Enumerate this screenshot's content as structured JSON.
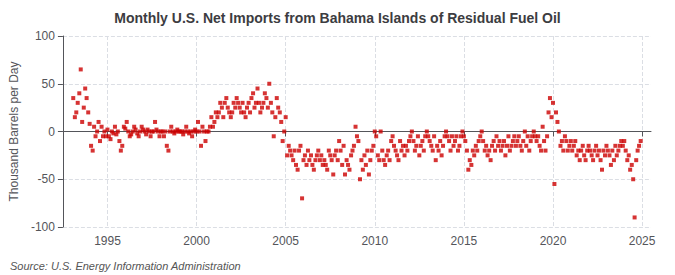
{
  "chart_data": {
    "type": "scatter",
    "title": "Monthly U.S. Net Imports from Bahama Islands of Residual Fuel Oil",
    "ylabel": "Thousand Barrels per Day",
    "annotations": [
      "Source: U.S. Energy Information Administration"
    ],
    "color": "#cc0000",
    "marker": "square",
    "grid": true,
    "xlim": [
      1992.5,
      2025.5
    ],
    "xticks": [
      1995,
      2000,
      2005,
      2010,
      2015,
      2020,
      2025
    ],
    "ylim": [
      -100,
      100
    ],
    "yticks": [
      -100,
      -50,
      0,
      50,
      100
    ],
    "x": [
      1993.08,
      1993.17,
      1993.25,
      1993.33,
      1993.42,
      1993.5,
      1993.58,
      1993.67,
      1993.75,
      1993.83,
      1993.92,
      1994,
      1994.08,
      1994.17,
      1994.25,
      1994.33,
      1994.42,
      1994.5,
      1994.58,
      1994.67,
      1994.75,
      1994.83,
      1994.92,
      1995,
      1995.08,
      1995.17,
      1995.25,
      1995.33,
      1995.42,
      1995.5,
      1995.58,
      1995.67,
      1995.75,
      1995.83,
      1995.92,
      1996,
      1996.08,
      1996.17,
      1996.25,
      1996.33,
      1996.42,
      1996.5,
      1996.58,
      1996.67,
      1996.75,
      1996.83,
      1996.92,
      1997,
      1997.08,
      1997.17,
      1997.25,
      1997.33,
      1997.42,
      1997.5,
      1997.58,
      1997.67,
      1997.75,
      1997.83,
      1997.92,
      1998,
      1998.08,
      1998.17,
      1998.25,
      1998.33,
      1998.42,
      1998.5,
      1998.58,
      1998.67,
      1998.75,
      1998.83,
      1998.92,
      1999,
      1999.08,
      1999.17,
      1999.25,
      1999.33,
      1999.42,
      1999.5,
      1999.58,
      1999.67,
      1999.75,
      1999.83,
      1999.92,
      2000,
      2000.08,
      2000.17,
      2000.25,
      2000.33,
      2000.42,
      2000.5,
      2000.58,
      2000.67,
      2000.75,
      2000.83,
      2000.92,
      2001,
      2001.08,
      2001.17,
      2001.25,
      2001.33,
      2001.42,
      2001.5,
      2001.58,
      2001.67,
      2001.75,
      2001.83,
      2001.92,
      2002,
      2002.08,
      2002.17,
      2002.25,
      2002.33,
      2002.42,
      2002.5,
      2002.58,
      2002.67,
      2002.75,
      2002.83,
      2002.92,
      2003,
      2003.08,
      2003.17,
      2003.25,
      2003.33,
      2003.42,
      2003.5,
      2003.58,
      2003.67,
      2003.75,
      2003.83,
      2003.92,
      2004,
      2004.08,
      2004.17,
      2004.25,
      2004.33,
      2004.42,
      2004.5,
      2004.58,
      2004.67,
      2004.75,
      2004.83,
      2004.92,
      2005,
      2005.08,
      2005.17,
      2005.25,
      2005.33,
      2005.42,
      2005.5,
      2005.58,
      2005.67,
      2005.75,
      2005.83,
      2005.92,
      2006,
      2006.08,
      2006.17,
      2006.25,
      2006.33,
      2006.42,
      2006.5,
      2006.58,
      2006.67,
      2006.75,
      2006.83,
      2006.92,
      2007,
      2007.08,
      2007.17,
      2007.25,
      2007.33,
      2007.42,
      2007.5,
      2007.58,
      2007.67,
      2007.75,
      2007.83,
      2007.92,
      2008,
      2008.08,
      2008.17,
      2008.25,
      2008.33,
      2008.42,
      2008.5,
      2008.58,
      2008.67,
      2008.75,
      2008.83,
      2008.92,
      2009,
      2009.08,
      2009.17,
      2009.25,
      2009.33,
      2009.42,
      2009.5,
      2009.58,
      2009.67,
      2009.75,
      2009.83,
      2009.92,
      2010,
      2010.08,
      2010.17,
      2010.25,
      2010.33,
      2010.42,
      2010.5,
      2010.58,
      2010.67,
      2010.75,
      2010.83,
      2010.92,
      2011,
      2011.08,
      2011.17,
      2011.25,
      2011.33,
      2011.42,
      2011.5,
      2011.58,
      2011.67,
      2011.75,
      2011.83,
      2011.92,
      2012,
      2012.08,
      2012.17,
      2012.25,
      2012.33,
      2012.42,
      2012.5,
      2012.58,
      2012.67,
      2012.75,
      2012.83,
      2012.92,
      2013,
      2013.08,
      2013.17,
      2013.25,
      2013.33,
      2013.42,
      2013.5,
      2013.58,
      2013.67,
      2013.75,
      2013.83,
      2013.92,
      2014,
      2014.08,
      2014.17,
      2014.25,
      2014.33,
      2014.42,
      2014.5,
      2014.58,
      2014.67,
      2014.75,
      2014.83,
      2014.92,
      2015,
      2015.08,
      2015.17,
      2015.25,
      2015.33,
      2015.42,
      2015.5,
      2015.58,
      2015.67,
      2015.75,
      2015.83,
      2015.92,
      2016,
      2016.08,
      2016.17,
      2016.25,
      2016.33,
      2016.42,
      2016.5,
      2016.58,
      2016.67,
      2016.75,
      2016.83,
      2016.92,
      2017,
      2017.08,
      2017.17,
      2017.25,
      2017.33,
      2017.42,
      2017.5,
      2017.58,
      2017.67,
      2017.75,
      2017.83,
      2017.92,
      2018,
      2018.08,
      2018.17,
      2018.25,
      2018.33,
      2018.42,
      2018.5,
      2018.58,
      2018.67,
      2018.75,
      2018.83,
      2018.92,
      2019,
      2019.08,
      2019.17,
      2019.25,
      2019.33,
      2019.42,
      2019.5,
      2019.58,
      2019.67,
      2019.75,
      2019.83,
      2019.92,
      2020,
      2020.08,
      2020.17,
      2020.25,
      2020.33,
      2020.42,
      2020.5,
      2020.58,
      2020.67,
      2020.75,
      2020.83,
      2020.92,
      2021,
      2021.08,
      2021.17,
      2021.25,
      2021.33,
      2021.42,
      2021.5,
      2021.58,
      2021.67,
      2021.75,
      2021.83,
      2021.92,
      2022,
      2022.08,
      2022.17,
      2022.25,
      2022.33,
      2022.42,
      2022.5,
      2022.58,
      2022.67,
      2022.75,
      2022.83,
      2022.92,
      2023,
      2023.08,
      2023.17,
      2023.25,
      2023.33,
      2023.42,
      2023.5,
      2023.58,
      2023.67,
      2023.75,
      2023.83,
      2023.92,
      2024,
      2024.08,
      2024.17,
      2024.25,
      2024.33,
      2024.42,
      2024.5,
      2024.58,
      2024.67,
      2024.75,
      2024.83,
      2024.92
    ],
    "values": [
      35,
      15,
      20,
      30,
      40,
      65,
      10,
      25,
      45,
      35,
      20,
      8,
      -15,
      -20,
      5,
      -5,
      0,
      10,
      -10,
      5,
      -5,
      0,
      -5,
      2,
      -5,
      -8,
      0,
      -2,
      5,
      -3,
      0,
      -10,
      -20,
      -15,
      5,
      3,
      10,
      0,
      -5,
      -3,
      0,
      5,
      2,
      -2,
      -5,
      0,
      5,
      2,
      0,
      -3,
      2,
      0,
      -5,
      0,
      0,
      10,
      2,
      0,
      -5,
      0,
      0,
      -5,
      0,
      -15,
      -20,
      0,
      5,
      0,
      -2,
      0,
      2,
      0,
      0,
      0,
      -3,
      0,
      5,
      0,
      -2,
      0,
      -5,
      0,
      2,
      0,
      10,
      0,
      -15,
      5,
      0,
      -10,
      0,
      0,
      5,
      15,
      5,
      10,
      20,
      15,
      20,
      30,
      25,
      15,
      30,
      35,
      25,
      20,
      15,
      20,
      30,
      25,
      35,
      30,
      25,
      20,
      30,
      20,
      15,
      25,
      30,
      20,
      35,
      40,
      25,
      30,
      45,
      30,
      20,
      25,
      30,
      40,
      35,
      25,
      50,
      30,
      20,
      -5,
      15,
      35,
      25,
      20,
      10,
      -10,
      0,
      15,
      -25,
      -15,
      -20,
      -25,
      -30,
      -20,
      -35,
      -40,
      -20,
      -15,
      -70,
      -30,
      -25,
      -35,
      -20,
      -30,
      -25,
      -35,
      -40,
      -30,
      -25,
      -20,
      -30,
      -25,
      -35,
      -30,
      -35,
      -40,
      -20,
      -25,
      -30,
      -45,
      -25,
      -20,
      -30,
      -10,
      -20,
      -35,
      -15,
      -45,
      -30,
      -35,
      -40,
      -25,
      -20,
      -15,
      5,
      -5,
      -10,
      -50,
      -30,
      -40,
      -25,
      -35,
      -20,
      -45,
      -30,
      -20,
      -15,
      0,
      -5,
      -25,
      -30,
      0,
      -20,
      -30,
      -35,
      -25,
      -20,
      -30,
      -10,
      -5,
      -15,
      -20,
      -25,
      -30,
      -10,
      -20,
      -15,
      -25,
      -15,
      -20,
      -10,
      -5,
      0,
      -10,
      -20,
      -15,
      -5,
      -25,
      -15,
      -10,
      -20,
      -5,
      0,
      -5,
      -10,
      -15,
      -20,
      -5,
      -30,
      -15,
      -20,
      -10,
      -25,
      -15,
      -5,
      0,
      -5,
      -10,
      -20,
      -5,
      -15,
      -10,
      -5,
      -20,
      -15,
      -5,
      0,
      -5,
      -10,
      -20,
      -40,
      -30,
      -35,
      -20,
      -25,
      -15,
      -20,
      -10,
      -5,
      0,
      -10,
      -20,
      -15,
      -25,
      -20,
      -30,
      -15,
      -10,
      -20,
      -5,
      -15,
      -10,
      -20,
      -15,
      -10,
      -25,
      -15,
      -5,
      -20,
      -15,
      -10,
      -5,
      -15,
      -10,
      -5,
      -15,
      -20,
      -10,
      0,
      -15,
      -5,
      -20,
      -10,
      -5,
      0,
      -5,
      -10,
      -5,
      -15,
      -20,
      5,
      -10,
      -20,
      -5,
      20,
      35,
      15,
      30,
      -55,
      20,
      10,
      0,
      -15,
      -10,
      -20,
      -5,
      -10,
      -20,
      -15,
      -10,
      -20,
      -15,
      -10,
      -25,
      -20,
      -30,
      -20,
      -15,
      -25,
      -30,
      -20,
      -15,
      -20,
      -25,
      -30,
      -20,
      -15,
      -25,
      -20,
      -30,
      -40,
      -20,
      -25,
      -15,
      -20,
      -25,
      -35,
      -20,
      -30,
      -15,
      -25,
      -20,
      -15,
      -10,
      -15,
      -10,
      -20,
      -30,
      -25,
      -40,
      -35,
      -50,
      -90,
      -30,
      -20,
      -15,
      -10
    ]
  }
}
